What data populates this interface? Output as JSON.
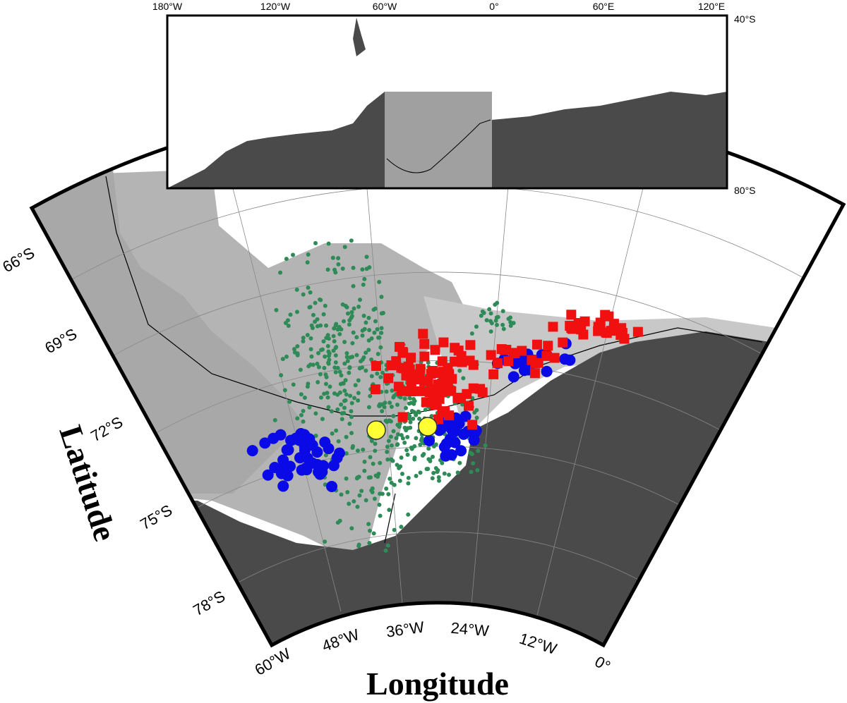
{
  "map": {
    "x_axis_label": "Longitude",
    "y_axis_label": "Latitude",
    "longitude_labels": [
      "60°W",
      "48°W",
      "36°W",
      "24°W",
      "12°W",
      "0°"
    ],
    "latitude_labels": [
      "66°S",
      "69°S",
      "72°S",
      "75°S",
      "78°S"
    ],
    "inset": {
      "longitude_labels": [
        "180°W",
        "120°W",
        "60°W",
        "0°",
        "60°E",
        "120°E"
      ],
      "latitude_labels": [
        "40°S",
        "80°S"
      ]
    }
  }
}
